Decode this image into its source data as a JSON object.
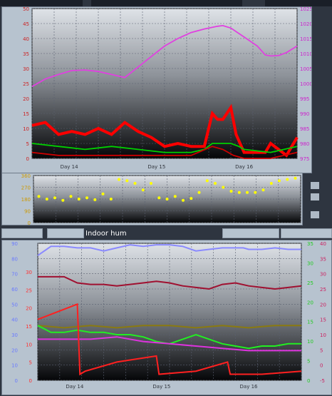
{
  "header_label": "Indoor hum",
  "colors": {
    "page_bg": "#2e3540",
    "panel_bg": "#b7c3cf",
    "wind": "#ff0000",
    "gust": "#cc0000",
    "avg_wind": "#00d000",
    "pressure": "#e040e0",
    "direction": "#ffff00",
    "humidity": "#8a8aff",
    "temp_out": "#ff2020",
    "dew": "#dd33dd",
    "temp_green": "#22ee22",
    "temp_olive": "#8a7a10",
    "indoor_hum": "#a01030"
  },
  "chart_data": [
    {
      "type": "line",
      "title": "",
      "x_ticks": [
        "Day 14",
        "Day 15",
        "Day 16"
      ],
      "y_left_ticks": [
        "0",
        "5",
        "10",
        "15",
        "20",
        "25",
        "30",
        "35",
        "40",
        "45",
        "50"
      ],
      "y_right_ticks": [
        "975",
        "980",
        "985",
        "990",
        "995",
        "1000",
        "1005",
        "1010",
        "1015",
        "1020",
        "1025"
      ],
      "ylim_left": [
        0,
        50
      ],
      "ylim_right": [
        975,
        1025
      ],
      "grid": true,
      "series": [
        {
          "axis": "right",
          "color_key": "pressure",
          "x": [
            0,
            0.05,
            0.1,
            0.15,
            0.2,
            0.25,
            0.3,
            0.35,
            0.4,
            0.45,
            0.5,
            0.55,
            0.6,
            0.65,
            0.7,
            0.72,
            0.75,
            0.8,
            0.85,
            0.88,
            0.9,
            0.93,
            0.96,
            1
          ],
          "y": [
            999,
            1001.5,
            1003,
            1004.3,
            1004.5,
            1004,
            1003,
            1002,
            1005.5,
            1009,
            1012.5,
            1015,
            1017,
            1018.2,
            1019.1,
            1019.3,
            1018.5,
            1015.5,
            1012.5,
            1009.5,
            1009.2,
            1009.3,
            1010.3,
            1012.5
          ]
        },
        {
          "axis": "left",
          "color_key": "wind",
          "x": [
            0,
            0.05,
            0.1,
            0.15,
            0.2,
            0.25,
            0.3,
            0.35,
            0.4,
            0.45,
            0.5,
            0.55,
            0.6,
            0.65,
            0.68,
            0.7,
            0.72,
            0.75,
            0.77,
            0.8,
            0.85,
            0.88,
            0.9,
            0.93,
            0.96,
            1
          ],
          "y": [
            11,
            12,
            8,
            9,
            8,
            10,
            8,
            12,
            9,
            7,
            4,
            5,
            4,
            4,
            15,
            13,
            13,
            17,
            8,
            2,
            2,
            2,
            5,
            3,
            1,
            7
          ]
        },
        {
          "axis": "left",
          "color_key": "avg_wind",
          "x": [
            0,
            0.1,
            0.2,
            0.3,
            0.4,
            0.5,
            0.6,
            0.65,
            0.68,
            0.72,
            0.75,
            0.78,
            0.8,
            0.9,
            1
          ],
          "y": [
            5,
            4,
            3,
            4,
            3,
            2,
            2,
            3,
            5,
            5,
            5,
            4,
            3,
            2,
            4
          ]
        },
        {
          "axis": "left",
          "color_key": "gust",
          "x": [
            0,
            0.1,
            0.2,
            0.3,
            0.4,
            0.5,
            0.6,
            0.68,
            0.72,
            0.76,
            0.8,
            0.9,
            1
          ],
          "y": [
            2,
            1,
            1,
            1,
            1,
            1,
            1,
            4,
            3,
            1,
            0,
            0,
            2
          ]
        }
      ]
    },
    {
      "type": "scatter",
      "title": "",
      "y_ticks": [
        "0",
        "90",
        "180",
        "270",
        "360"
      ],
      "ylim": [
        0,
        360
      ],
      "series": [
        {
          "name": "",
          "color_key": "direction",
          "x": [
            0.02,
            0.05,
            0.08,
            0.11,
            0.14,
            0.17,
            0.2,
            0.23,
            0.26,
            0.29,
            0.32,
            0.35,
            0.38,
            0.41,
            0.44,
            0.47,
            0.5,
            0.53,
            0.56,
            0.59,
            0.62,
            0.65,
            0.68,
            0.71,
            0.74,
            0.77,
            0.8,
            0.83,
            0.86,
            0.89,
            0.92,
            0.95,
            0.98
          ],
          "y": [
            200,
            180,
            190,
            170,
            200,
            180,
            190,
            175,
            220,
            180,
            330,
            320,
            300,
            250,
            300,
            190,
            180,
            200,
            170,
            185,
            230,
            320,
            300,
            270,
            240,
            230,
            230,
            230,
            250,
            300,
            320,
            330,
            340
          ]
        }
      ]
    },
    {
      "type": "line",
      "title": "",
      "header": "Indoor hum",
      "x_ticks": [
        "Day 14",
        "Day 15",
        "Day 16"
      ],
      "y_left_ticks": [
        "0",
        "5",
        "10",
        "15",
        "20",
        "25",
        "30"
      ],
      "y_left2_ticks": [
        "0",
        "10",
        "20",
        "30",
        "40",
        "50",
        "60",
        "70",
        "80",
        "90"
      ],
      "y_right_ticks": [
        "0",
        "5",
        "10",
        "15",
        "20",
        "25",
        "30",
        "35"
      ],
      "y_right2_ticks": [
        "-5",
        "0",
        "5",
        "10",
        "15",
        "20",
        "25",
        "30",
        "35",
        "40"
      ],
      "ylim_left": [
        0,
        30
      ],
      "ylim_right": [
        -5,
        40
      ],
      "grid": true,
      "series": [
        {
          "axis": "left2",
          "color_key": "humidity",
          "x": [
            0,
            0.05,
            0.1,
            0.15,
            0.2,
            0.25,
            0.3,
            0.35,
            0.4,
            0.45,
            0.5,
            0.55,
            0.6,
            0.65,
            0.7,
            0.75,
            0.78,
            0.8,
            0.85,
            0.9,
            0.95,
            1
          ],
          "y": [
            82,
            88,
            88,
            87,
            87,
            85,
            87,
            89,
            88,
            89,
            89,
            88,
            85,
            86,
            87,
            87,
            87,
            86,
            86,
            87,
            86,
            86
          ]
        },
        {
          "axis": "left2",
          "color_key": "indoor_hum",
          "x": [
            0,
            0.05,
            0.1,
            0.15,
            0.2,
            0.25,
            0.3,
            0.35,
            0.4,
            0.45,
            0.5,
            0.55,
            0.6,
            0.65,
            0.7,
            0.75,
            0.8,
            0.85,
            0.9,
            0.95,
            1
          ],
          "y": [
            68,
            68,
            68,
            64,
            63,
            63,
            62,
            63,
            64,
            65,
            64,
            62,
            61,
            60,
            63,
            64,
            62,
            61,
            60,
            61,
            62
          ]
        },
        {
          "axis": "left",
          "color_key": "temp_olive",
          "x": [
            0,
            0.1,
            0.2,
            0.3,
            0.4,
            0.5,
            0.6,
            0.7,
            0.8,
            0.9,
            1
          ],
          "y": [
            12,
            11.5,
            12,
            11.5,
            12,
            12,
            11.5,
            12,
            11.5,
            12,
            12
          ]
        },
        {
          "axis": "left",
          "color_key": "temp_green",
          "x": [
            0,
            0.05,
            0.1,
            0.15,
            0.2,
            0.25,
            0.3,
            0.35,
            0.4,
            0.45,
            0.5,
            0.55,
            0.6,
            0.65,
            0.7,
            0.75,
            0.8,
            0.85,
            0.9,
            0.95,
            1
          ],
          "y": [
            12,
            10.5,
            10.5,
            11,
            10.5,
            10.5,
            10,
            10,
            9.5,
            8.5,
            8,
            9,
            10,
            9,
            8,
            7.5,
            7,
            7.5,
            7.5,
            8,
            8
          ]
        },
        {
          "axis": "left",
          "color_key": "dew",
          "x": [
            0,
            0.1,
            0.2,
            0.3,
            0.4,
            0.5,
            0.6,
            0.7,
            0.8,
            0.9,
            1
          ],
          "y": [
            9,
            9,
            9,
            9.5,
            8.5,
            8,
            7.5,
            7,
            6.5,
            6.5,
            6.5
          ]
        },
        {
          "axis": "right",
          "color_key": "temp_out",
          "x": [
            0,
            0.15,
            0.16,
            0.18,
            0.3,
            0.45,
            0.46,
            0.6,
            0.72,
            0.73,
            0.85,
            1
          ],
          "y": [
            15,
            20,
            -3,
            -2,
            1,
            3,
            -3,
            -2,
            1,
            -3,
            -3,
            -2
          ]
        }
      ]
    }
  ]
}
